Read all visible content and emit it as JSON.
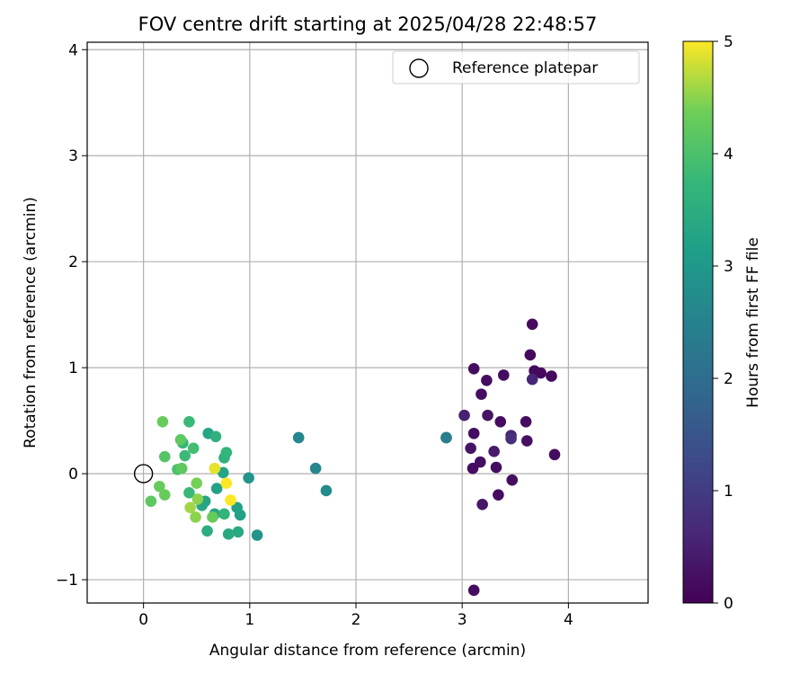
{
  "chart_data": {
    "type": "scatter",
    "title": "FOV centre drift starting at 2025/04/28 22:48:57",
    "xlabel": "Angular distance from reference (arcmin)",
    "ylabel": "Rotation from reference (arcmin)",
    "xlim": [
      -0.53,
      4.75
    ],
    "ylim": [
      -1.22,
      4.07
    ],
    "xticks": [
      0,
      1,
      2,
      3,
      4
    ],
    "yticks": [
      -1,
      0,
      1,
      2,
      3,
      4
    ],
    "grid": true,
    "legend": {
      "position": "top-right",
      "entries": [
        "Reference platepar"
      ]
    },
    "reference_point": {
      "x": 0,
      "y": 0,
      "label": "Reference platepar"
    },
    "colorbar": {
      "label": "Hours from first FF file",
      "colormap": "viridis",
      "range": [
        0,
        5
      ],
      "ticks": [
        0,
        1,
        2,
        3,
        4,
        5
      ]
    },
    "points": [
      {
        "x": 3.66,
        "y": 1.41,
        "c": 0.15
      },
      {
        "x": 3.64,
        "y": 1.12,
        "c": 0.15
      },
      {
        "x": 3.11,
        "y": 0.99,
        "c": 0.2
      },
      {
        "x": 3.68,
        "y": 0.97,
        "c": 0.15
      },
      {
        "x": 3.74,
        "y": 0.95,
        "c": 0.15
      },
      {
        "x": 3.39,
        "y": 0.93,
        "c": 0.2
      },
      {
        "x": 3.84,
        "y": 0.92,
        "c": 0.15
      },
      {
        "x": 3.23,
        "y": 0.88,
        "c": 0.2
      },
      {
        "x": 3.66,
        "y": 0.89,
        "c": 0.6
      },
      {
        "x": 3.18,
        "y": 0.75,
        "c": 0.2
      },
      {
        "x": 3.02,
        "y": 0.55,
        "c": 0.5
      },
      {
        "x": 3.24,
        "y": 0.55,
        "c": 0.3
      },
      {
        "x": 3.36,
        "y": 0.49,
        "c": 0.2
      },
      {
        "x": 3.6,
        "y": 0.49,
        "c": 0.2
      },
      {
        "x": 3.46,
        "y": 0.36,
        "c": 0.6
      },
      {
        "x": 3.46,
        "y": 0.33,
        "c": 0.8
      },
      {
        "x": 3.61,
        "y": 0.31,
        "c": 0.25
      },
      {
        "x": 3.11,
        "y": 0.38,
        "c": 0.2
      },
      {
        "x": 3.08,
        "y": 0.24,
        "c": 0.3
      },
      {
        "x": 3.3,
        "y": 0.21,
        "c": 0.4
      },
      {
        "x": 3.87,
        "y": 0.18,
        "c": 0.2
      },
      {
        "x": 3.17,
        "y": 0.11,
        "c": 0.2
      },
      {
        "x": 3.1,
        "y": 0.05,
        "c": 0.2
      },
      {
        "x": 3.32,
        "y": 0.06,
        "c": 0.2
      },
      {
        "x": 3.47,
        "y": -0.06,
        "c": 0.2
      },
      {
        "x": 3.34,
        "y": -0.2,
        "c": 0.2
      },
      {
        "x": 3.19,
        "y": -0.29,
        "c": 0.35
      },
      {
        "x": 3.11,
        "y": -1.1,
        "c": 0.2
      },
      {
        "x": 2.85,
        "y": 0.34,
        "c": 2.2
      },
      {
        "x": 2.85,
        "y": 0.34,
        "c": 2.4
      },
      {
        "x": 1.46,
        "y": 0.34,
        "c": 2.6
      },
      {
        "x": 1.62,
        "y": 0.05,
        "c": 2.6
      },
      {
        "x": 1.72,
        "y": -0.16,
        "c": 2.7
      },
      {
        "x": 0.99,
        "y": -0.04,
        "c": 2.9
      },
      {
        "x": 1.07,
        "y": -0.58,
        "c": 2.9
      },
      {
        "x": 0.61,
        "y": 0.38,
        "c": 3.3
      },
      {
        "x": 0.68,
        "y": 0.35,
        "c": 3.6
      },
      {
        "x": 0.76,
        "y": 0.15,
        "c": 3.6
      },
      {
        "x": 0.78,
        "y": 0.2,
        "c": 3.7
      },
      {
        "x": 0.75,
        "y": 0.01,
        "c": 3.3
      },
      {
        "x": 0.69,
        "y": -0.14,
        "c": 3.2
      },
      {
        "x": 0.55,
        "y": -0.3,
        "c": 3.4
      },
      {
        "x": 0.58,
        "y": -0.26,
        "c": 3.3
      },
      {
        "x": 0.67,
        "y": -0.38,
        "c": 3.3
      },
      {
        "x": 0.76,
        "y": -0.38,
        "c": 3.7
      },
      {
        "x": 0.88,
        "y": -0.32,
        "c": 3.2
      },
      {
        "x": 0.91,
        "y": -0.39,
        "c": 3.2
      },
      {
        "x": 0.6,
        "y": -0.54,
        "c": 3.5
      },
      {
        "x": 0.8,
        "y": -0.57,
        "c": 3.4
      },
      {
        "x": 0.89,
        "y": -0.55,
        "c": 3.4
      },
      {
        "x": 0.43,
        "y": 0.49,
        "c": 3.8
      },
      {
        "x": 0.47,
        "y": 0.24,
        "c": 3.9
      },
      {
        "x": 0.37,
        "y": 0.29,
        "c": 3.7
      },
      {
        "x": 0.39,
        "y": 0.17,
        "c": 3.8
      },
      {
        "x": 0.43,
        "y": -0.18,
        "c": 3.8
      },
      {
        "x": 0.18,
        "y": 0.49,
        "c": 4.3
      },
      {
        "x": 0.2,
        "y": 0.16,
        "c": 4.1
      },
      {
        "x": 0.35,
        "y": 0.32,
        "c": 4.2
      },
      {
        "x": 0.32,
        "y": 0.04,
        "c": 4.0
      },
      {
        "x": 0.36,
        "y": 0.05,
        "c": 4.2
      },
      {
        "x": 0.15,
        "y": -0.12,
        "c": 4.3
      },
      {
        "x": 0.2,
        "y": -0.2,
        "c": 4.3
      },
      {
        "x": 0.07,
        "y": -0.26,
        "c": 4.2
      },
      {
        "x": 0.5,
        "y": -0.09,
        "c": 4.4
      },
      {
        "x": 0.51,
        "y": -0.24,
        "c": 4.5
      },
      {
        "x": 0.44,
        "y": -0.32,
        "c": 4.6
      },
      {
        "x": 0.49,
        "y": -0.41,
        "c": 4.5
      },
      {
        "x": 0.65,
        "y": -0.41,
        "c": 4.3
      },
      {
        "x": 0.67,
        "y": 0.05,
        "c": 4.9
      },
      {
        "x": 0.78,
        "y": -0.09,
        "c": 5.0
      },
      {
        "x": 0.82,
        "y": -0.25,
        "c": 5.0
      }
    ]
  }
}
